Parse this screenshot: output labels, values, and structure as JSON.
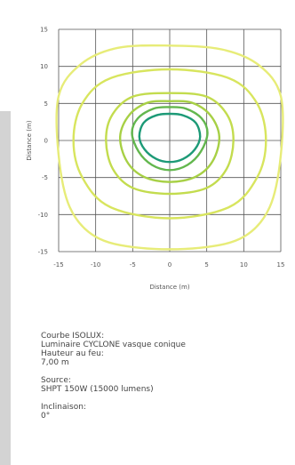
{
  "chart_data": {
    "type": "contour",
    "title": "",
    "xlabel": "Distance (m)",
    "ylabel": "Distance (m)",
    "xlim": [
      -15,
      15
    ],
    "ylim": [
      -15,
      15
    ],
    "xticks": [
      -15,
      -10,
      -5,
      0,
      5,
      10,
      15
    ],
    "yticks": [
      15,
      10,
      5,
      0,
      -5,
      -10,
      -15
    ],
    "grid": true,
    "contours": [
      {
        "color": "#e7ec78",
        "points": [
          [
            -15,
            6
          ],
          [
            -12,
            10.3
          ],
          [
            -7,
            12.5
          ],
          [
            0,
            12.8
          ],
          [
            7,
            12.3
          ],
          [
            12,
            10.2
          ],
          [
            15,
            6
          ],
          [
            15,
            -2
          ],
          [
            13.5,
            -9
          ],
          [
            10,
            -13
          ],
          [
            4,
            -14.5
          ],
          [
            -4,
            -14.5
          ],
          [
            -10,
            -13
          ],
          [
            -13.5,
            -9
          ],
          [
            -15,
            -2
          ]
        ]
      },
      {
        "color": "#d8e55e",
        "points": [
          [
            -13,
            0
          ],
          [
            -11.8,
            5
          ],
          [
            -8,
            8.4
          ],
          [
            0,
            9.6
          ],
          [
            8,
            8.4
          ],
          [
            11.8,
            5
          ],
          [
            13,
            0
          ],
          [
            11.8,
            -5
          ],
          [
            8,
            -9
          ],
          [
            0,
            -10.5
          ],
          [
            -8,
            -9
          ],
          [
            -11.8,
            -5
          ]
        ]
      },
      {
        "color": "#c3dc4e",
        "points": [
          [
            -8.6,
            0
          ],
          [
            -7.8,
            3.4
          ],
          [
            -5,
            5.9
          ],
          [
            0,
            6.4
          ],
          [
            5,
            5.9
          ],
          [
            7.8,
            3.4
          ],
          [
            8.6,
            0
          ],
          [
            7.7,
            -3.8
          ],
          [
            5,
            -6.4
          ],
          [
            0,
            -7.2
          ],
          [
            -5,
            -6.4
          ],
          [
            -7.7,
            -3.8
          ]
        ]
      },
      {
        "color": "#a7d045",
        "points": [
          [
            -6.7,
            0.5
          ],
          [
            -5.5,
            3.4
          ],
          [
            -3,
            5.1
          ],
          [
            0,
            5.3
          ],
          [
            3,
            5.1
          ],
          [
            5.5,
            3.4
          ],
          [
            6.7,
            0.5
          ],
          [
            5.8,
            -2.8
          ],
          [
            3.5,
            -4.9
          ],
          [
            0,
            -5.6
          ],
          [
            -3.5,
            -4.9
          ],
          [
            -5.8,
            -2.8
          ]
        ]
      },
      {
        "color": "#63b74e",
        "points": [
          [
            -5.1,
            1
          ],
          [
            -4.3,
            3
          ],
          [
            -2.2,
            4.3
          ],
          [
            0,
            4.5
          ],
          [
            2.2,
            4.3
          ],
          [
            4.3,
            3
          ],
          [
            5.1,
            1
          ],
          [
            4.2,
            -1.5
          ],
          [
            2.4,
            -3.3
          ],
          [
            0,
            -4
          ],
          [
            -2.4,
            -3.3
          ],
          [
            -4.2,
            -1.5
          ]
        ]
      },
      {
        "color": "#1d9a77",
        "points": [
          [
            -4.1,
            0.5
          ],
          [
            -3.5,
            2.4
          ],
          [
            -1.8,
            3.4
          ],
          [
            0,
            3.6
          ],
          [
            1.8,
            3.4
          ],
          [
            3.5,
            2.4
          ],
          [
            4.1,
            0.5
          ],
          [
            3.4,
            -1.2
          ],
          [
            1.8,
            -2.5
          ],
          [
            0,
            -2.9
          ],
          [
            -1.8,
            -2.5
          ],
          [
            -3.4,
            -1.2
          ]
        ]
      }
    ]
  },
  "info": {
    "line1": "Courbe ISOLUX:",
    "line2": "Luminaire CYCLONE vasque conique",
    "line3": "Hauteur au feu:",
    "line4": "7,00 m",
    "line5": "Source:",
    "line6": "SHPT 150W (15000 lumens)",
    "line7": "Inclinaison:",
    "line8": "0°"
  }
}
